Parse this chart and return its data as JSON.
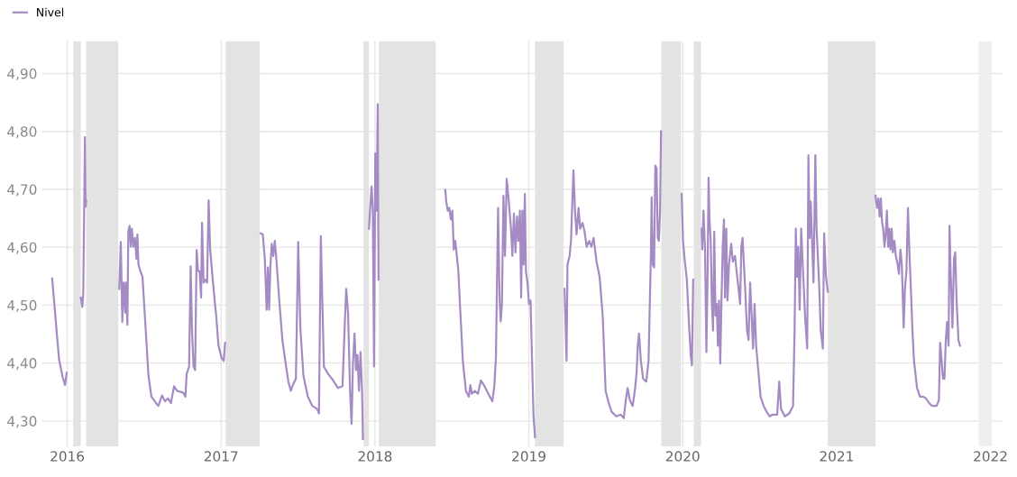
{
  "chart_data": {
    "type": "line",
    "series": [
      {
        "name": "Nivel",
        "color": "#a58bc4",
        "x": [
          2015.902,
          2015.947,
          2015.971,
          2015.986,
          2015.996,
          null,
          2016.088,
          2016.098,
          2016.104,
          2016.111,
          2016.115,
          2016.119,
          2016.123,
          null,
          2016.338,
          2016.348,
          2016.358,
          2016.366,
          2016.377,
          2016.381,
          2016.391,
          2016.397,
          2016.405,
          2016.413,
          2016.42,
          2016.43,
          2016.44,
          2016.45,
          2016.456,
          2016.463,
          2016.475,
          2016.489,
          2016.508,
          2016.528,
          2016.547,
          2016.577,
          2016.592,
          2016.616,
          2016.635,
          2016.655,
          2016.674,
          2016.694,
          2016.714,
          2016.753,
          2016.768,
          2016.776,
          2016.792,
          2016.802,
          2016.811,
          2016.821,
          2016.831,
          2016.841,
          2016.85,
          2016.86,
          2016.87,
          2016.876,
          2016.886,
          2016.899,
          2016.909,
          2016.919,
          2016.929,
          2016.944,
          2016.958,
          2016.968,
          2016.983,
          2017.003,
          2017.017,
          2017.026,
          null,
          2017.257,
          2017.271,
          2017.284,
          2017.296,
          2017.304,
          2017.312,
          2017.32,
          2017.329,
          2017.339,
          2017.349,
          2017.359,
          2017.378,
          2017.398,
          2017.417,
          2017.437,
          2017.453,
          2017.466,
          2017.486,
          2017.501,
          2017.515,
          2017.535,
          2017.564,
          2017.593,
          2017.623,
          2017.636,
          2017.648,
          2017.668,
          2017.691,
          2017.72,
          2017.76,
          2017.789,
          2017.805,
          2017.813,
          2017.825,
          2017.838,
          2017.848,
          2017.857,
          2017.867,
          2017.877,
          2017.886,
          2017.896,
          2017.906,
          2017.916,
          2017.922,
          null,
          2017.961,
          2017.969,
          2017.978,
          2017.986,
          2017.994,
          2018.002,
          2018.01,
          2018.018,
          2018.023,
          null,
          2018.457,
          2018.463,
          2018.473,
          2018.483,
          2018.493,
          2018.503,
          2018.512,
          2018.522,
          2018.532,
          2018.542,
          2018.551,
          2018.561,
          2018.571,
          2018.581,
          2018.591,
          2018.61,
          2018.62,
          2018.63,
          2018.649,
          2018.669,
          2018.688,
          2018.708,
          2018.727,
          2018.747,
          2018.763,
          2018.776,
          2018.786,
          2018.8,
          2018.81,
          2018.817,
          2018.825,
          2018.835,
          2018.845,
          2018.856,
          2018.868,
          2018.884,
          2018.893,
          2018.903,
          2018.913,
          2018.923,
          2018.932,
          2018.942,
          2018.95,
          2018.958,
          2018.966,
          2018.974,
          2018.981,
          2018.991,
          2019.001,
          2019.011,
          2019.021,
          2019.03,
          2019.04,
          null,
          2019.232,
          2019.24,
          2019.245,
          2019.251,
          2019.265,
          2019.274,
          2019.282,
          2019.29,
          2019.3,
          2019.31,
          2019.323,
          2019.333,
          2019.349,
          2019.362,
          2019.376,
          2019.392,
          2019.407,
          2019.421,
          2019.44,
          2019.46,
          2019.48,
          2019.499,
          2019.519,
          2019.538,
          2019.568,
          2019.597,
          2019.617,
          2019.63,
          2019.642,
          2019.656,
          2019.675,
          2019.691,
          2019.7,
          2019.708,
          2019.716,
          2019.728,
          2019.743,
          2019.763,
          2019.778,
          2019.793,
          2019.798,
          2019.806,
          2019.814,
          2019.822,
          2019.83,
          2019.838,
          2019.845,
          2019.853,
          2019.859,
          null,
          2019.993,
          2020.002,
          2020.014,
          2020.027,
          2020.041,
          2020.052,
          2020.06,
          2020.068,
          null,
          2020.123,
          2020.127,
          2020.135,
          2020.145,
          2020.154,
          2020.162,
          2020.168,
          2020.174,
          2020.182,
          2020.189,
          2020.197,
          2020.205,
          2020.213,
          2020.221,
          2020.229,
          2020.236,
          2020.244,
          2020.252,
          2020.26,
          2020.268,
          2020.275,
          2020.283,
          2020.291,
          2020.301,
          2020.315,
          2020.326,
          2020.34,
          2020.35,
          2020.363,
          2020.373,
          2020.381,
          2020.389,
          2020.405,
          2020.418,
          2020.428,
          2020.438,
          2020.448,
          2020.457,
          2020.467,
          2020.477,
          2020.491,
          2020.506,
          2020.526,
          2020.545,
          2020.565,
          2020.584,
          2020.614,
          2020.627,
          2020.639,
          2020.663,
          2020.692,
          2020.717,
          2020.727,
          2020.735,
          2020.743,
          2020.751,
          2020.76,
          2020.77,
          2020.78,
          2020.795,
          2020.809,
          2020.817,
          2020.825,
          2020.832,
          2020.84,
          2020.85,
          2020.862,
          2020.87,
          2020.886,
          2020.897,
          2020.911,
          2020.919,
          2020.931,
          2020.943,
          null,
          2021.253,
          2021.263,
          2021.272,
          2021.28,
          2021.288,
          2021.296,
          2021.303,
          2021.311,
          2021.319,
          2021.327,
          2021.335,
          2021.342,
          2021.35,
          2021.358,
          2021.366,
          2021.376,
          2021.385,
          2021.397,
          2021.405,
          2021.415,
          2021.424,
          2021.436,
          2021.444,
          2021.454,
          2021.464,
          2021.474,
          2021.483,
          2021.493,
          2021.503,
          2021.523,
          2021.542,
          2021.562,
          2021.581,
          2021.601,
          2021.621,
          2021.65,
          2021.665,
          2021.673,
          2021.683,
          2021.691,
          2021.701,
          2021.71,
          2021.718,
          2021.728,
          2021.734,
          2021.741,
          2021.753,
          2021.763,
          2021.771,
          2021.78,
          2021.792,
          2021.802
        ],
        "values": [
          4.546,
          4.406,
          4.375,
          4.362,
          4.383,
          null,
          4.513,
          4.497,
          4.52,
          4.69,
          4.79,
          4.67,
          4.68,
          null,
          4.528,
          4.609,
          4.471,
          4.539,
          4.487,
          4.539,
          4.466,
          4.627,
          4.637,
          4.601,
          4.632,
          4.601,
          4.616,
          4.58,
          4.622,
          4.57,
          4.559,
          4.549,
          4.466,
          4.378,
          4.342,
          4.331,
          4.326,
          4.344,
          4.334,
          4.339,
          4.331,
          4.36,
          4.352,
          4.349,
          4.342,
          4.381,
          4.394,
          4.567,
          4.455,
          4.394,
          4.388,
          4.595,
          4.559,
          4.559,
          4.513,
          4.642,
          4.539,
          4.544,
          4.539,
          4.681,
          4.596,
          4.549,
          4.508,
          4.482,
          4.43,
          4.409,
          4.404,
          4.435,
          null,
          4.624,
          4.622,
          4.58,
          4.492,
          4.565,
          4.492,
          4.565,
          4.606,
          4.585,
          4.611,
          4.58,
          4.508,
          4.44,
          4.404,
          4.368,
          4.352,
          4.362,
          4.373,
          4.609,
          4.461,
          4.378,
          4.342,
          4.326,
          4.321,
          4.313,
          4.619,
          4.394,
          4.383,
          4.373,
          4.357,
          4.36,
          4.476,
          4.528,
          4.487,
          4.352,
          4.295,
          4.399,
          4.451,
          4.388,
          4.414,
          4.352,
          4.419,
          4.352,
          4.269,
          null,
          4.632,
          4.668,
          4.705,
          4.663,
          4.394,
          4.762,
          4.663,
          4.847,
          4.544,
          null,
          4.699,
          4.679,
          4.663,
          4.668,
          4.648,
          4.663,
          4.596,
          4.611,
          4.585,
          4.559,
          4.508,
          4.456,
          4.404,
          4.378,
          4.352,
          4.342,
          4.362,
          4.347,
          4.352,
          4.347,
          4.37,
          4.362,
          4.352,
          4.342,
          4.334,
          4.362,
          4.409,
          4.668,
          4.508,
          4.472,
          4.502,
          4.689,
          4.585,
          4.718,
          4.684,
          4.632,
          4.585,
          4.658,
          4.591,
          4.653,
          4.611,
          4.663,
          4.513,
          4.663,
          4.57,
          4.692,
          4.559,
          4.539,
          4.502,
          4.508,
          4.404,
          4.311,
          4.272,
          null,
          4.528,
          4.456,
          4.404,
          4.57,
          4.585,
          4.611,
          4.673,
          4.733,
          4.663,
          4.622,
          4.668,
          4.632,
          4.642,
          4.627,
          4.601,
          4.611,
          4.601,
          4.616,
          4.575,
          4.549,
          4.482,
          4.352,
          4.331,
          4.316,
          4.308,
          4.311,
          4.305,
          4.336,
          4.357,
          4.336,
          4.326,
          4.357,
          4.383,
          4.43,
          4.451,
          4.404,
          4.373,
          4.368,
          4.404,
          4.585,
          4.686,
          4.57,
          4.565,
          4.741,
          4.736,
          4.616,
          4.611,
          4.663,
          4.8,
          null,
          4.692,
          4.611,
          4.575,
          4.544,
          4.466,
          4.414,
          4.396,
          4.544,
          null,
          4.632,
          4.596,
          4.663,
          4.596,
          4.419,
          4.559,
          4.72,
          4.648,
          4.611,
          4.508,
          4.456,
          4.627,
          4.482,
          4.502,
          4.43,
          4.508,
          4.399,
          4.508,
          4.601,
          4.648,
          4.513,
          4.632,
          4.508,
          4.57,
          4.606,
          4.575,
          4.585,
          4.559,
          4.528,
          4.502,
          4.601,
          4.616,
          4.533,
          4.456,
          4.44,
          4.539,
          4.482,
          4.425,
          4.502,
          4.43,
          4.388,
          4.342,
          4.326,
          4.316,
          4.308,
          4.311,
          4.311,
          4.368,
          4.321,
          4.308,
          4.313,
          4.326,
          4.456,
          4.632,
          4.549,
          4.601,
          4.492,
          4.632,
          4.57,
          4.482,
          4.425,
          4.759,
          4.616,
          4.679,
          4.616,
          4.539,
          4.759,
          4.632,
          4.539,
          4.456,
          4.425,
          4.624,
          4.549,
          4.523,
          null,
          4.689,
          4.668,
          4.684,
          4.653,
          4.684,
          4.642,
          4.632,
          4.601,
          4.622,
          4.663,
          4.601,
          4.632,
          4.596,
          4.632,
          4.591,
          4.611,
          4.585,
          4.57,
          4.554,
          4.596,
          4.57,
          4.461,
          4.528,
          4.559,
          4.668,
          4.585,
          4.528,
          4.456,
          4.404,
          4.357,
          4.342,
          4.342,
          4.339,
          4.331,
          4.326,
          4.326,
          4.336,
          4.435,
          4.404,
          4.373,
          4.373,
          4.44,
          4.471,
          4.43,
          4.637,
          4.559,
          4.461,
          4.58,
          4.591,
          4.508,
          4.44,
          4.43
        ]
      }
    ],
    "bands": [
      {
        "axis": "x",
        "from": 2016.039,
        "to": 2016.088,
        "color": "#e3e3e3"
      },
      {
        "axis": "x",
        "from": 2016.123,
        "to": 2016.332,
        "color": "#e3e3e3"
      },
      {
        "axis": "x",
        "from": 2017.03,
        "to": 2017.251,
        "color": "#e3e3e3"
      },
      {
        "axis": "x",
        "from": 2017.926,
        "to": 2017.961,
        "color": "#e3e3e3"
      },
      {
        "axis": "x",
        "from": 2018.025,
        "to": 2018.395,
        "color": "#e3e3e3"
      },
      {
        "axis": "x",
        "from": 2019.04,
        "to": 2019.226,
        "color": "#e3e3e3"
      },
      {
        "axis": "x",
        "from": 2019.861,
        "to": 2019.988,
        "color": "#e3e3e3"
      },
      {
        "axis": "x",
        "from": 2020.072,
        "to": 2020.119,
        "color": "#e3e3e3"
      },
      {
        "axis": "x",
        "from": 2020.943,
        "to": 2021.253,
        "color": "#e3e3e3"
      },
      {
        "axis": "x",
        "from": 2021.924,
        "to": 2022.008,
        "color": "#efefef"
      }
    ],
    "xlim": [
      2015.834,
      2022.08
    ],
    "xticks": [
      2016,
      2017,
      2018,
      2019,
      2020,
      2021,
      2022
    ],
    "ylim": [
      4.256,
      4.956
    ],
    "yticks": [
      {
        "value": 4.3,
        "label": "4,30"
      },
      {
        "value": 4.4,
        "label": "4,40"
      },
      {
        "value": 4.5,
        "label": "4,50"
      },
      {
        "value": 4.6,
        "label": "4,60"
      },
      {
        "value": 4.7,
        "label": "4,70"
      },
      {
        "value": 4.8,
        "label": "4,80"
      },
      {
        "value": 4.9,
        "label": "4,90"
      }
    ],
    "grid": true,
    "legend": "top left",
    "marker": "none",
    "line_style": "solid"
  }
}
